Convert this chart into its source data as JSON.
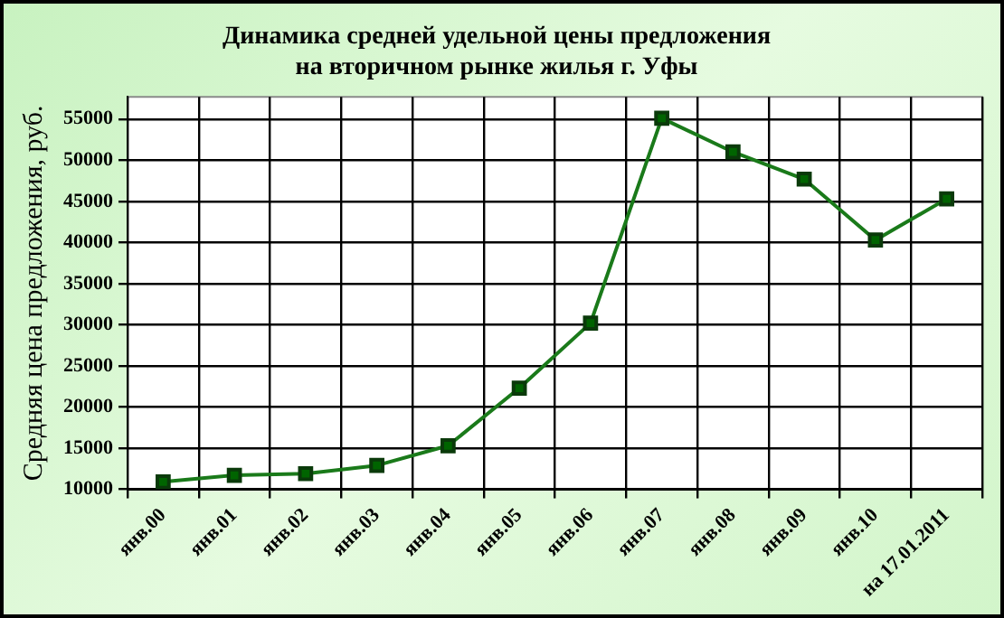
{
  "chart_data": {
    "type": "line",
    "title": "Динамика средней удельной цены предложения\nна вторичном рынке жилья г. Уфы",
    "ylabel": "Средняя цена предложения, руб.",
    "categories": [
      "янв.00",
      "янв.01",
      "янв.02",
      "янв.03",
      "янв.04",
      "янв.05",
      "янв.06",
      "янв.07",
      "янв.08",
      "янв.09",
      "янв.10",
      "на 17.01.2011"
    ],
    "series": [
      {
        "color": "#1a7a1a",
        "values": [
          10900,
          11700,
          11900,
          12900,
          15300,
          22300,
          30200,
          55100,
          51000,
          47700,
          40300,
          45300
        ]
      }
    ],
    "ylim": [
      10000,
      57700
    ],
    "yticks": [
      10000,
      15000,
      20000,
      25000,
      30000,
      35000,
      40000,
      45000,
      50000,
      55000
    ],
    "grid": true,
    "legend": false,
    "marker": "square",
    "line_style": "solid"
  }
}
